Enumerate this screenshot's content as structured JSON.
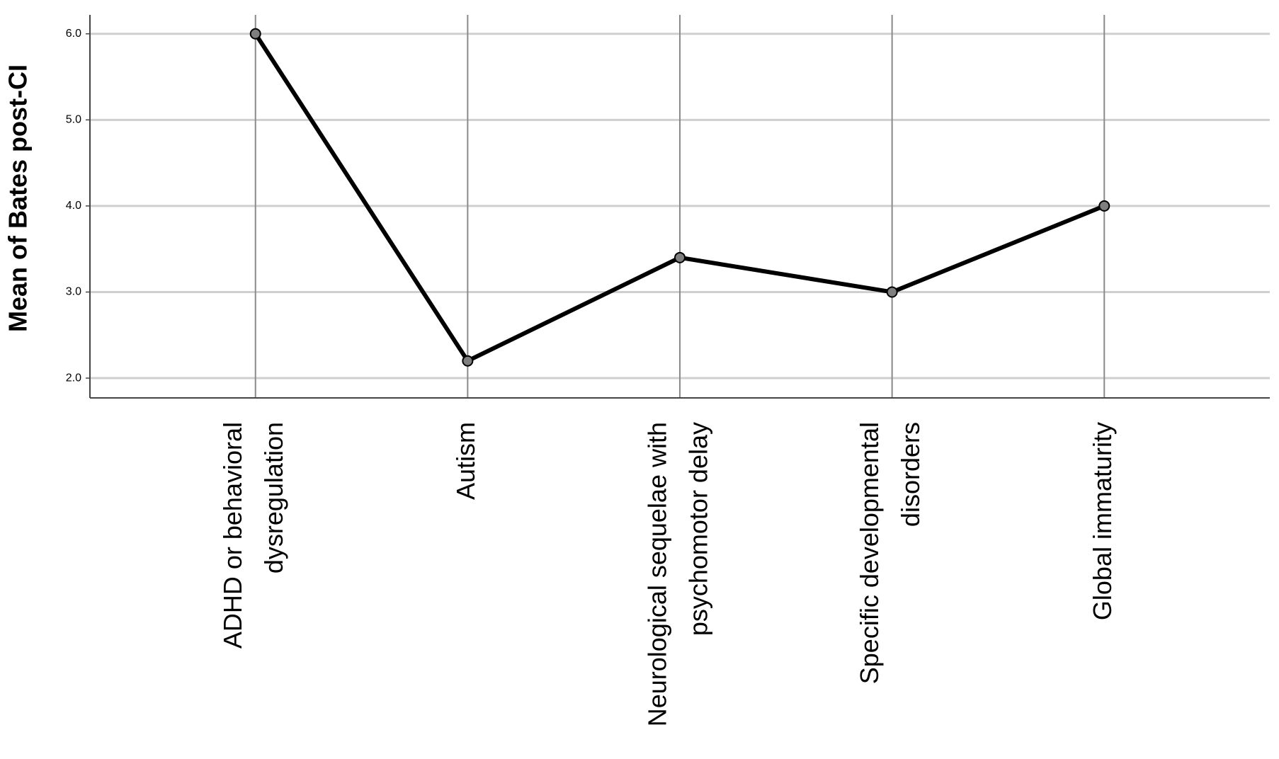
{
  "chart_data": {
    "type": "line",
    "y_label": "Mean of Bates post-CI",
    "categories": [
      "ADHD or behavioral dysregulation",
      "Autism",
      "Neurological sequelae with psychomotor delay",
      "Specific developmental disorders",
      "Global immaturity"
    ],
    "values": [
      6.0,
      2.2,
      3.4,
      3.0,
      4.0
    ],
    "color": "#000000",
    "marker_color": "#7f7f7f",
    "ylim": [
      1.77,
      6.22
    ],
    "yticks": [
      {
        "value": 2,
        "label": "2.0"
      },
      {
        "value": 3,
        "label": "3.0"
      },
      {
        "value": 4,
        "label": "4.0"
      },
      {
        "value": 5,
        "label": "5.0"
      },
      {
        "value": 6,
        "label": "6.0"
      }
    ],
    "grid": true
  }
}
